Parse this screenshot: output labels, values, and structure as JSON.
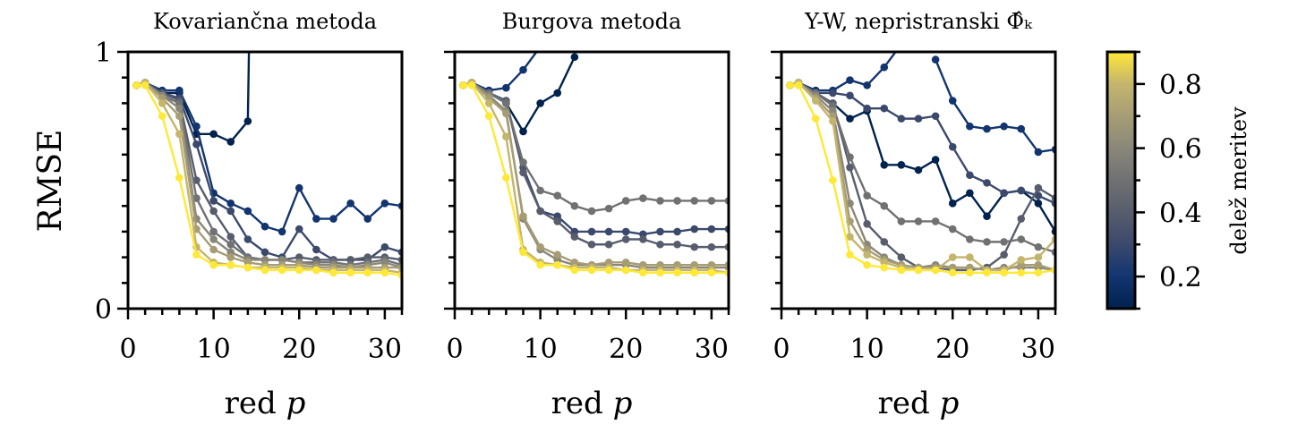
{
  "chart_data": {
    "type": "line",
    "colormap": "cividis",
    "colorbar": {
      "label": "delež meritev",
      "range": [
        0.1,
        0.9
      ],
      "ticks": [
        0.2,
        0.4,
        0.6,
        0.8
      ],
      "tick_labels": [
        "0.2",
        "0.4",
        "0.6",
        "0.8"
      ]
    },
    "ylabel": "RMSE",
    "ylim": [
      0,
      1
    ],
    "yticks": [
      0,
      1
    ],
    "ytick_labels": [
      "0",
      "1"
    ],
    "xlim": [
      0,
      32
    ],
    "xticks": [
      0,
      10,
      20,
      30
    ],
    "xtick_labels": [
      "0",
      "10",
      "20",
      "30"
    ],
    "x": [
      1,
      2,
      4,
      6,
      8,
      10,
      12,
      14,
      16,
      18,
      20,
      22,
      24,
      26,
      28,
      30,
      32
    ],
    "panels": [
      {
        "title": "Kovariančna metoda",
        "xlabel": "red p",
        "series": [
          {
            "name": "0.1",
            "values": [
              0.87,
              0.88,
              0.84,
              0.84,
              0.68,
              0.68,
              0.65,
              0.73,
              5.0,
              null,
              null,
              null,
              null,
              null,
              null,
              null,
              null
            ]
          },
          {
            "name": "0.2",
            "values": [
              0.87,
              0.88,
              0.85,
              0.85,
              0.71,
              0.45,
              0.41,
              0.38,
              0.32,
              0.3,
              0.47,
              0.35,
              0.35,
              0.41,
              0.35,
              0.41,
              0.4
            ]
          },
          {
            "name": "0.3",
            "values": [
              0.87,
              0.88,
              0.84,
              0.82,
              0.64,
              0.42,
              0.38,
              0.27,
              0.22,
              0.2,
              0.31,
              0.23,
              0.19,
              0.19,
              0.19,
              0.24,
              0.22
            ]
          },
          {
            "name": "0.4",
            "values": [
              0.87,
              0.88,
              0.84,
              0.81,
              0.5,
              0.38,
              0.28,
              0.2,
              0.19,
              0.19,
              0.2,
              0.19,
              0.19,
              0.19,
              0.2,
              0.2,
              0.19
            ]
          },
          {
            "name": "0.5",
            "values": [
              0.87,
              0.88,
              0.83,
              0.8,
              0.43,
              0.3,
              0.25,
              0.2,
              0.19,
              0.19,
              0.18,
              0.18,
              0.18,
              0.17,
              0.18,
              0.19,
              0.17
            ]
          },
          {
            "name": "0.6",
            "values": [
              0.87,
              0.88,
              0.83,
              0.78,
              0.35,
              0.27,
              0.22,
              0.19,
              0.19,
              0.19,
              0.18,
              0.17,
              0.17,
              0.16,
              0.17,
              0.18,
              0.16
            ]
          },
          {
            "name": "0.7",
            "values": [
              0.87,
              0.88,
              0.82,
              0.75,
              0.31,
              0.23,
              0.2,
              0.18,
              0.17,
              0.17,
              0.17,
              0.16,
              0.16,
              0.16,
              0.16,
              0.16,
              0.16
            ]
          },
          {
            "name": "0.8",
            "values": [
              0.87,
              0.88,
              0.8,
              0.68,
              0.24,
              0.18,
              0.17,
              0.16,
              0.16,
              0.16,
              0.16,
              0.15,
              0.15,
              0.15,
              0.15,
              0.15,
              0.14
            ]
          },
          {
            "name": "0.9",
            "values": [
              0.87,
              0.87,
              0.75,
              0.51,
              0.21,
              0.17,
              0.17,
              0.16,
              0.15,
              0.15,
              0.15,
              0.15,
              0.14,
              0.14,
              0.14,
              0.14,
              0.13
            ]
          }
        ]
      },
      {
        "title": "Burgova metoda",
        "xlabel": "red p",
        "series": [
          {
            "name": "0.1",
            "values": [
              0.87,
              0.88,
              0.84,
              0.8,
              0.69,
              0.8,
              0.84,
              0.98,
              null,
              null,
              null,
              null,
              null,
              null,
              null,
              null,
              null
            ]
          },
          {
            "name": "0.2",
            "values": [
              0.87,
              0.88,
              0.85,
              0.86,
              0.93,
              1.02,
              null,
              null,
              null,
              null,
              null,
              null,
              null,
              null,
              null,
              null,
              null
            ]
          },
          {
            "name": "0.3",
            "values": [
              0.87,
              0.88,
              0.84,
              0.81,
              0.55,
              0.38,
              0.36,
              0.3,
              0.3,
              0.3,
              0.3,
              0.29,
              0.3,
              0.3,
              0.31,
              0.31,
              0.31
            ]
          },
          {
            "name": "0.4",
            "values": [
              0.87,
              0.88,
              0.84,
              0.81,
              0.53,
              0.38,
              0.34,
              0.28,
              0.25,
              0.25,
              0.27,
              0.27,
              0.25,
              0.25,
              0.24,
              0.24,
              0.24
            ]
          },
          {
            "name": "0.5",
            "values": [
              0.87,
              0.88,
              0.84,
              0.8,
              0.57,
              0.46,
              0.44,
              0.4,
              0.38,
              0.39,
              0.42,
              0.43,
              0.42,
              0.42,
              0.42,
              0.42,
              0.42
            ]
          },
          {
            "name": "0.6",
            "values": [
              0.87,
              0.88,
              0.83,
              0.77,
              0.35,
              0.23,
              0.19,
              0.17,
              0.17,
              0.17,
              0.17,
              0.16,
              0.16,
              0.16,
              0.16,
              0.16,
              0.16
            ]
          },
          {
            "name": "0.7",
            "values": [
              0.87,
              0.88,
              0.82,
              0.76,
              0.36,
              0.24,
              0.21,
              0.18,
              0.17,
              0.18,
              0.18,
              0.17,
              0.17,
              0.17,
              0.17,
              0.17,
              0.17
            ]
          },
          {
            "name": "0.8",
            "values": [
              0.87,
              0.88,
              0.8,
              0.67,
              0.23,
              0.18,
              0.17,
              0.16,
              0.16,
              0.16,
              0.15,
              0.15,
              0.15,
              0.15,
              0.15,
              0.15,
              0.14
            ]
          },
          {
            "name": "0.9",
            "values": [
              0.87,
              0.87,
              0.75,
              0.51,
              0.22,
              0.17,
              0.17,
              0.15,
              0.15,
              0.15,
              0.15,
              0.14,
              0.14,
              0.14,
              0.14,
              0.14,
              0.14
            ]
          }
        ]
      },
      {
        "title": "Y-W, nepristranski Φ̂ₖ",
        "xlabel": "red p",
        "series": [
          {
            "name": "0.1",
            "values": [
              0.87,
              0.88,
              0.84,
              0.8,
              0.74,
              0.77,
              0.56,
              0.56,
              0.54,
              0.58,
              0.41,
              0.45,
              0.36,
              0.45,
              0.46,
              0.41,
              0.3
            ]
          },
          {
            "name": "0.2",
            "values": [
              0.87,
              0.88,
              0.85,
              0.85,
              0.89,
              0.87,
              0.94,
              1.03,
              null,
              0.97,
              0.81,
              0.71,
              0.7,
              0.71,
              0.7,
              0.61,
              0.62
            ]
          },
          {
            "name": "0.3",
            "values": [
              0.87,
              0.88,
              0.84,
              0.84,
              0.83,
              0.78,
              0.78,
              0.74,
              0.74,
              0.75,
              0.63,
              0.52,
              0.49,
              0.45,
              0.46,
              0.44,
              0.41
            ]
          },
          {
            "name": "0.4",
            "values": [
              0.87,
              0.88,
              0.84,
              0.8,
              0.55,
              0.33,
              0.26,
              0.2,
              0.16,
              0.16,
              0.15,
              0.15,
              0.16,
              0.21,
              0.35,
              0.47,
              0.43
            ]
          },
          {
            "name": "0.5",
            "values": [
              0.87,
              0.88,
              0.84,
              0.79,
              0.59,
              0.44,
              0.4,
              0.34,
              0.34,
              0.34,
              0.31,
              0.27,
              0.26,
              0.26,
              0.27,
              0.24,
              0.22
            ]
          },
          {
            "name": "0.6",
            "values": [
              0.87,
              0.88,
              0.83,
              0.77,
              0.41,
              0.25,
              0.2,
              0.17,
              0.16,
              0.17,
              0.16,
              0.16,
              0.15,
              0.16,
              0.16,
              0.16,
              0.15
            ]
          },
          {
            "name": "0.7",
            "values": [
              0.87,
              0.88,
              0.82,
              0.75,
              0.34,
              0.23,
              0.19,
              0.17,
              0.16,
              0.16,
              0.16,
              0.16,
              0.15,
              0.15,
              0.17,
              0.17,
              0.15
            ]
          },
          {
            "name": "0.8",
            "values": [
              0.87,
              0.88,
              0.81,
              0.73,
              0.28,
              0.21,
              0.18,
              0.16,
              0.15,
              0.15,
              0.2,
              0.2,
              0.15,
              0.15,
              0.19,
              0.2,
              0.27
            ]
          },
          {
            "name": "0.9",
            "values": [
              0.87,
              0.87,
              0.74,
              0.5,
              0.21,
              0.17,
              0.16,
              0.15,
              0.15,
              0.15,
              0.14,
              0.14,
              0.14,
              0.14,
              0.14,
              0.14,
              0.15
            ]
          }
        ]
      }
    ]
  }
}
